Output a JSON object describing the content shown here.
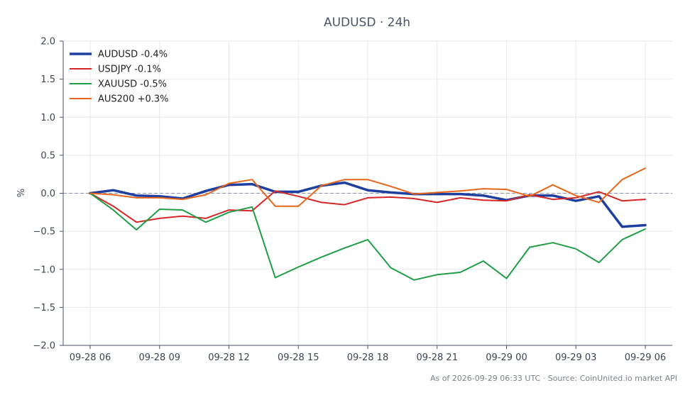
{
  "chart_data": {
    "type": "line",
    "title": "AUDUSD · 24h",
    "ylabel": "%",
    "xlabel": "",
    "ylim": [
      -2.0,
      2.0
    ],
    "yticks": [
      -2.0,
      -1.5,
      -1.0,
      -0.5,
      0.0,
      0.5,
      1.0,
      1.5,
      2.0
    ],
    "ytick_labels": [
      "−2.0",
      "−1.5",
      "−1.0",
      "−0.5",
      "0.0",
      "0.5",
      "1.0",
      "1.5",
      "2.0"
    ],
    "xlim": [
      "2026-09-28 04:50",
      "2026-09-29 07:10"
    ],
    "xtick_positions": [
      "2026-09-28 06:00",
      "2026-09-28 09:00",
      "2026-09-28 12:00",
      "2026-09-28 15:00",
      "2026-09-28 18:00",
      "2026-09-28 21:00",
      "2026-09-29 00:00",
      "2026-09-29 03:00",
      "2026-09-29 06:00"
    ],
    "xtick_labels": [
      "09-28 06",
      "09-28 09",
      "09-28 12",
      "09-28 15",
      "09-28 18",
      "09-28 21",
      "09-29 00",
      "09-29 03",
      "09-29 06"
    ],
    "x": [
      "2026-09-28 06:00",
      "2026-09-28 07:00",
      "2026-09-28 08:00",
      "2026-09-28 09:00",
      "2026-09-28 10:00",
      "2026-09-28 11:00",
      "2026-09-28 12:00",
      "2026-09-28 13:00",
      "2026-09-28 14:00",
      "2026-09-28 15:00",
      "2026-09-28 16:00",
      "2026-09-28 17:00",
      "2026-09-28 18:00",
      "2026-09-28 19:00",
      "2026-09-28 20:00",
      "2026-09-28 21:00",
      "2026-09-28 22:00",
      "2026-09-28 23:00",
      "2026-09-29 00:00",
      "2026-09-29 01:00",
      "2026-09-29 02:00",
      "2026-09-29 03:00",
      "2026-09-29 04:00",
      "2026-09-29 05:00",
      "2026-09-29 06:00"
    ],
    "series": [
      {
        "name": "AUDUSD -0.4%",
        "color": "#1f3fa0",
        "width": 3.5,
        "values": [
          0.0,
          0.04,
          -0.03,
          -0.04,
          -0.07,
          0.03,
          0.11,
          0.12,
          0.02,
          0.02,
          0.1,
          0.14,
          0.04,
          0.01,
          -0.01,
          -0.01,
          -0.01,
          -0.03,
          -0.09,
          -0.03,
          -0.03,
          -0.1,
          -0.04,
          -0.44,
          -0.42
        ]
      },
      {
        "name": "USDJPY -0.1%",
        "color": "#d62728",
        "width": 2,
        "values": [
          0.0,
          -0.17,
          -0.38,
          -0.33,
          -0.3,
          -0.33,
          -0.22,
          -0.23,
          0.03,
          -0.04,
          -0.12,
          -0.15,
          -0.06,
          -0.05,
          -0.07,
          -0.12,
          -0.06,
          -0.09,
          -0.1,
          -0.02,
          -0.08,
          -0.06,
          0.02,
          -0.1,
          -0.08
        ]
      },
      {
        "name": "XAUUSD -0.5%",
        "color": "#1f9e45",
        "width": 2,
        "values": [
          0.0,
          -0.22,
          -0.48,
          -0.21,
          -0.22,
          -0.38,
          -0.25,
          -0.18,
          -1.11,
          -0.97,
          -0.84,
          -0.72,
          -0.61,
          -0.98,
          -1.14,
          -1.07,
          -1.04,
          -0.89,
          -1.12,
          -0.71,
          -0.65,
          -0.73,
          -0.91,
          -0.61,
          -0.47
        ]
      },
      {
        "name": "AUS200 +0.3%",
        "color": "#e8661a",
        "width": 2,
        "values": [
          0.0,
          -0.02,
          -0.06,
          -0.06,
          -0.08,
          -0.02,
          0.13,
          0.18,
          -0.17,
          -0.17,
          0.1,
          0.18,
          0.18,
          0.09,
          -0.01,
          0.01,
          0.03,
          0.06,
          0.05,
          -0.04,
          0.11,
          -0.03,
          -0.12,
          0.18,
          0.33
        ]
      }
    ],
    "baseline": 0.0,
    "grid": true,
    "legend_position": "top-left"
  },
  "footer": {
    "text": "As of 2026-09-29 06:33 UTC · Source: CoinUnited.io market API"
  }
}
